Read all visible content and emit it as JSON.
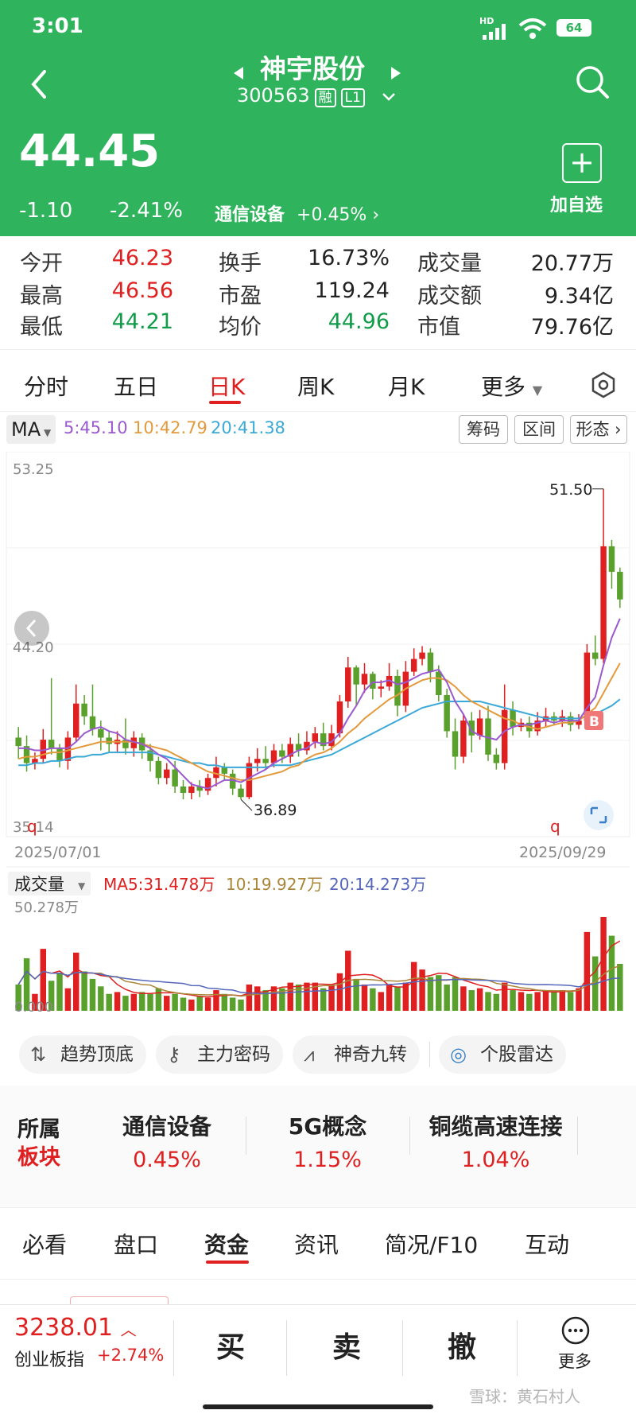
{
  "status_bar": {
    "time": "3:01",
    "battery": "64",
    "network": "HD"
  },
  "header": {
    "stock_name": "神宇股份",
    "stock_code": "300563",
    "badge_margin": "融",
    "badge_level": "L1",
    "price": "44.45",
    "change": "-1.10",
    "change_pct": "-2.41%",
    "sector_name": "通信设备",
    "sector_change": "+0.45%",
    "add_watch_label": "加自选"
  },
  "stats": [
    {
      "label": "今开",
      "value": "46.23",
      "color": "#e02020"
    },
    {
      "label": "换手",
      "value": "16.73%",
      "color": "#222222"
    },
    {
      "label": "成交量",
      "value": "20.77万",
      "color": "#222222"
    },
    {
      "label": "最高",
      "value": "46.56",
      "color": "#e02020"
    },
    {
      "label": "市盈",
      "value": "119.24",
      "color": "#222222"
    },
    {
      "label": "成交额",
      "value": "9.34亿",
      "color": "#222222"
    },
    {
      "label": "最低",
      "value": "44.21",
      "color": "#109c49"
    },
    {
      "label": "均价",
      "value": "44.96",
      "color": "#109c49"
    },
    {
      "label": "市值",
      "value": "79.76亿",
      "color": "#222222"
    }
  ],
  "chart_tabs": [
    "分时",
    "五日",
    "日K",
    "周K",
    "月K",
    "更多"
  ],
  "active_chart_tab": "日K",
  "indicator_bar": {
    "ma_button": "MA",
    "ma5": "5:45.10",
    "ma10": "10:42.79",
    "ma20": "20:41.38",
    "btn_chips": "筹码",
    "btn_range": "区间",
    "btn_pattern": "形态"
  },
  "colors": {
    "up": "#e02020",
    "down": "#5aa02c",
    "ma5": "#9b59d0",
    "ma10": "#e39a3c",
    "ma20": "#3aa9d8",
    "header_green": "#2fb35c"
  },
  "chart_data": {
    "type": "candlestick",
    "y_max_label": "53.25",
    "y_mid_label": "44.20",
    "y_min_label": "35.14",
    "ylim": [
      35.14,
      53.25
    ],
    "start_date": "2025/07/01",
    "end_date": "2025/09/29",
    "high_annotation": "51.50",
    "low_annotation": "36.89",
    "candles": [
      [
        39.8,
        39.4,
        40.3,
        38.8
      ],
      [
        39.4,
        38.6,
        39.9,
        38.2
      ],
      [
        38.6,
        38.8,
        39.1,
        38.3
      ],
      [
        38.8,
        39.7,
        40.2,
        38.6
      ],
      [
        39.7,
        39.3,
        42.6,
        39.0
      ],
      [
        39.3,
        38.7,
        39.5,
        38.4
      ],
      [
        38.7,
        39.8,
        40.1,
        38.3
      ],
      [
        39.8,
        41.4,
        42.3,
        39.6
      ],
      [
        41.4,
        40.8,
        41.8,
        40.4
      ],
      [
        40.8,
        40.2,
        42.3,
        39.9
      ],
      [
        40.2,
        39.8,
        40.6,
        39.2
      ],
      [
        39.8,
        39.5,
        40.1,
        39.1
      ],
      [
        39.5,
        39.7,
        40.1,
        39.1
      ],
      [
        39.7,
        39.3,
        40.7,
        39.0
      ],
      [
        39.3,
        39.8,
        40.1,
        38.9
      ],
      [
        39.8,
        39.2,
        40.0,
        38.8
      ],
      [
        39.2,
        38.7,
        39.5,
        38.2
      ],
      [
        38.7,
        37.9,
        38.9,
        37.6
      ],
      [
        37.9,
        38.3,
        38.6,
        37.6
      ],
      [
        38.3,
        37.5,
        38.7,
        37.2
      ],
      [
        37.5,
        37.2,
        37.8,
        36.9
      ],
      [
        37.2,
        37.5,
        37.7,
        36.9
      ],
      [
        37.5,
        37.3,
        37.8,
        37.0
      ],
      [
        37.3,
        37.9,
        38.1,
        37.1
      ],
      [
        37.9,
        38.4,
        38.9,
        37.5
      ],
      [
        38.4,
        38.1,
        38.6,
        37.8
      ],
      [
        38.1,
        37.4,
        38.3,
        37.1
      ],
      [
        37.4,
        37.0,
        37.6,
        36.89
      ],
      [
        37.0,
        38.6,
        38.9,
        36.9
      ],
      [
        38.6,
        38.8,
        39.3,
        38.2
      ],
      [
        38.8,
        38.6,
        39.4,
        38.3
      ],
      [
        38.6,
        39.2,
        39.5,
        38.4
      ],
      [
        39.2,
        38.9,
        39.5,
        38.6
      ],
      [
        38.9,
        39.5,
        39.8,
        38.6
      ],
      [
        39.5,
        39.2,
        40.0,
        38.9
      ],
      [
        39.2,
        39.6,
        40.1,
        39.0
      ],
      [
        39.6,
        40.0,
        40.3,
        39.3
      ],
      [
        40.0,
        39.4,
        40.5,
        39.2
      ],
      [
        39.4,
        40.0,
        40.4,
        39.2
      ],
      [
        40.0,
        41.5,
        41.8,
        39.8
      ],
      [
        41.5,
        43.1,
        43.6,
        41.2
      ],
      [
        43.1,
        42.3,
        43.2,
        41.3
      ],
      [
        42.3,
        42.8,
        43.3,
        41.9
      ],
      [
        42.8,
        42.1,
        42.9,
        41.6
      ],
      [
        42.1,
        42.2,
        42.5,
        41.7
      ],
      [
        42.2,
        42.7,
        43.3,
        42.0
      ],
      [
        42.7,
        41.3,
        43.0,
        40.8
      ],
      [
        41.3,
        42.9,
        43.4,
        41.0
      ],
      [
        42.9,
        43.5,
        44.0,
        42.7
      ],
      [
        43.5,
        43.8,
        44.1,
        43.2
      ],
      [
        43.8,
        42.9,
        44.0,
        42.4
      ],
      [
        42.9,
        41.8,
        43.2,
        41.5
      ],
      [
        41.8,
        40.1,
        42.1,
        39.8
      ],
      [
        40.1,
        38.9,
        40.7,
        38.3
      ],
      [
        38.9,
        40.6,
        40.9,
        38.6
      ],
      [
        40.6,
        39.9,
        41.0,
        39.1
      ],
      [
        39.9,
        40.7,
        41.1,
        39.7
      ],
      [
        40.7,
        39.0,
        41.3,
        38.7
      ],
      [
        39.0,
        38.6,
        39.3,
        38.3
      ],
      [
        38.6,
        41.1,
        42.3,
        38.3
      ],
      [
        41.1,
        40.3,
        41.5,
        39.9
      ],
      [
        40.3,
        40.5,
        40.7,
        40.1
      ],
      [
        40.5,
        40.1,
        40.8,
        39.8
      ],
      [
        40.1,
        40.6,
        41.0,
        39.9
      ],
      [
        40.6,
        40.8,
        41.2,
        40.3
      ],
      [
        40.8,
        40.6,
        41.0,
        40.4
      ],
      [
        40.6,
        40.8,
        41.1,
        40.3
      ],
      [
        40.8,
        40.4,
        41.0,
        40.1
      ],
      [
        40.4,
        40.6,
        40.9,
        40.2
      ],
      [
        40.6,
        43.8,
        44.2,
        40.4
      ],
      [
        43.8,
        43.5,
        44.6,
        43.2
      ],
      [
        43.5,
        48.8,
        51.5,
        43.3
      ],
      [
        48.8,
        47.6,
        49.1,
        46.8
      ],
      [
        47.6,
        46.3,
        47.8,
        45.9
      ]
    ],
    "ma5": [
      39.3,
      39.3,
      39.2,
      39.2,
      39.3,
      39.3,
      39.3,
      39.6,
      40.0,
      40.2,
      40.3,
      40.1,
      40.0,
      39.7,
      39.6,
      39.5,
      39.3,
      39.0,
      38.8,
      38.4,
      38.0,
      37.6,
      37.5,
      37.4,
      37.6,
      37.8,
      37.8,
      37.7,
      37.9,
      38.1,
      38.3,
      38.6,
      38.8,
      39.0,
      39.2,
      39.3,
      39.6,
      39.5,
      39.6,
      40.0,
      40.7,
      41.3,
      42.0,
      42.4,
      42.4,
      42.5,
      42.3,
      42.4,
      42.6,
      42.8,
      42.9,
      43.0,
      42.4,
      41.5,
      40.9,
      40.1,
      39.9,
      39.8,
      39.7,
      40.1,
      40.3,
      40.4,
      40.4,
      40.5,
      40.6,
      40.5,
      40.6,
      40.6,
      40.6,
      41.2,
      41.7,
      43.2,
      44.5,
      45.4
    ],
    "ma10": [
      38.8,
      38.9,
      38.9,
      39.0,
      39.1,
      39.1,
      39.2,
      39.3,
      39.4,
      39.5,
      39.6,
      39.6,
      39.6,
      39.6,
      39.6,
      39.5,
      39.4,
      39.3,
      39.2,
      39.0,
      38.8,
      38.6,
      38.4,
      38.2,
      38.1,
      38.0,
      37.9,
      37.8,
      37.8,
      37.9,
      38.0,
      38.1,
      38.2,
      38.4,
      38.5,
      38.8,
      39.0,
      39.1,
      39.3,
      39.6,
      40.0,
      40.3,
      40.7,
      41.0,
      41.3,
      41.6,
      41.8,
      42.1,
      42.3,
      42.5,
      42.6,
      42.6,
      42.5,
      42.2,
      41.8,
      41.5,
      41.3,
      41.1,
      40.9,
      40.7,
      40.6,
      40.4,
      40.3,
      40.2,
      40.3,
      40.4,
      40.5,
      40.5,
      40.6,
      40.9,
      41.2,
      41.9,
      42.6,
      43.3
    ],
    "ma20": [
      38.5,
      38.5,
      38.6,
      38.6,
      38.7,
      38.7,
      38.8,
      38.9,
      38.9,
      39.0,
      39.0,
      39.1,
      39.1,
      39.1,
      39.1,
      39.1,
      39.1,
      39.0,
      38.9,
      38.8,
      38.7,
      38.6,
      38.6,
      38.5,
      38.5,
      38.4,
      38.4,
      38.4,
      38.4,
      38.4,
      38.4,
      38.5,
      38.5,
      38.5,
      38.6,
      38.7,
      38.8,
      38.9,
      39.0,
      39.2,
      39.4,
      39.6,
      39.8,
      40.0,
      40.2,
      40.4,
      40.6,
      40.8,
      41.0,
      41.2,
      41.3,
      41.4,
      41.5,
      41.5,
      41.5,
      41.5,
      41.5,
      41.4,
      41.3,
      41.2,
      41.1,
      41.0,
      40.9,
      40.8,
      40.7,
      40.7,
      40.7,
      40.7,
      40.7,
      40.8,
      40.9,
      41.1,
      41.3,
      41.6
    ],
    "volume_label": "成交量",
    "vol_ma5": "MA5:31.478万",
    "vol_ma10": "10:19.927万",
    "vol_ma20": "20:14.273万",
    "vol_max_label": "50.278万",
    "vol_min_label": "0.000",
    "volumes": [
      14,
      28,
      9,
      33,
      16,
      20,
      12,
      31,
      21,
      17,
      13,
      9,
      10,
      8,
      9,
      10,
      9,
      12,
      8,
      9,
      7,
      6,
      8,
      7,
      11,
      9,
      7,
      6,
      14,
      13,
      11,
      13,
      12,
      15,
      14,
      15,
      15,
      12,
      14,
      20,
      32,
      17,
      14,
      12,
      10,
      14,
      13,
      15,
      26,
      22,
      18,
      19,
      14,
      18,
      13,
      11,
      12,
      10,
      9,
      15,
      11,
      10,
      9,
      10,
      11,
      10,
      11,
      10,
      12,
      42,
      29,
      50,
      40,
      25
    ]
  },
  "feature_chips": [
    "趋势顶底",
    "主力密码",
    "神奇九转",
    "个股雷达"
  ],
  "sectors_label_1": "所属",
  "sectors_label_2": "板块",
  "sectors": [
    {
      "name": "通信设备",
      "change": "0.45%"
    },
    {
      "name": "5G概念",
      "change": "1.15%"
    },
    {
      "name": "铜缆高速连接",
      "change": "1.04%"
    }
  ],
  "bottom_tabs": [
    "必看",
    "盘口",
    "资金",
    "资讯",
    "简况/F10",
    "互动"
  ],
  "active_bottom_tab": "资金",
  "index_bar": {
    "value": "3238.01",
    "name": "创业板指",
    "change": "+2.74%"
  },
  "actions": {
    "buy": "买",
    "sell": "卖",
    "cancel": "撤",
    "more": "更多"
  },
  "watermark": "雪球：黄石村人"
}
